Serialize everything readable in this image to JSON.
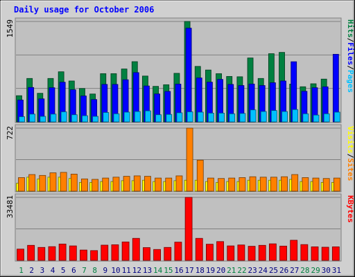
{
  "chart_data": {
    "type": "bar",
    "title": "Daily usage for October 2006",
    "x": [
      "1",
      "2",
      "3",
      "4",
      "5",
      "6",
      "7",
      "8",
      "9",
      "10",
      "11",
      "12",
      "13",
      "14",
      "15",
      "16",
      "17",
      "18",
      "19",
      "20",
      "21",
      "22",
      "23",
      "24",
      "25",
      "26",
      "27",
      "28",
      "29",
      "30",
      "31"
    ],
    "weekend_days": [
      "1",
      "7",
      "8",
      "14",
      "15",
      "21",
      "22",
      "28",
      "29"
    ],
    "colors": {
      "hits": "#008040",
      "files": "#0000ff",
      "pages": "#00c0ff",
      "visits": "#ffff00",
      "sites": "#ff8000",
      "kbytes": "#ff0000",
      "weekday_label": "#000080",
      "weekend_label": "#008040",
      "title": "#0000ff",
      "panel": "#c0c0c0",
      "frame": "#d0d0d0"
    },
    "panels": [
      {
        "id": "hits-files-pages",
        "ymax_label": "1549",
        "ymax": 1549,
        "side_labels": [
          {
            "text": "Hits",
            "key": "hits"
          },
          {
            "text": "/",
            "key": "sep"
          },
          {
            "text": "Files",
            "key": "files"
          },
          {
            "text": "/",
            "key": "sep"
          },
          {
            "text": "Pages",
            "key": "pages"
          }
        ],
        "series": [
          {
            "key": "hits",
            "values": [
              404,
              670,
              441,
              670,
              773,
              631,
              515,
              430,
              744,
              744,
              816,
              929,
              707,
              548,
              573,
              749,
              1549,
              856,
              800,
              744,
              701,
              696,
              986,
              670,
              1052,
              1072,
              583,
              542,
              588,
              660,
              0
            ]
          },
          {
            "key": "files",
            "values": [
              337,
              531,
              355,
              527,
              612,
              496,
              400,
              345,
              578,
              578,
              650,
              760,
              554,
              431,
              470,
              583,
              1446,
              678,
              613,
              655,
              578,
              561,
              584,
              561,
              604,
              631,
              928,
              472,
              527,
              541,
              1043
            ]
          },
          {
            "key": "pages",
            "values": [
              80,
              120,
              85,
              120,
              155,
              110,
              95,
              85,
              145,
              125,
              150,
              160,
              170,
              110,
              115,
              140,
              155,
              150,
              135,
              135,
              125,
              130,
              185,
              160,
              175,
              160,
              190,
              125,
              105,
              125,
              150
            ]
          }
        ]
      },
      {
        "id": "visits-sites",
        "ymax_label": "722",
        "ymax": 722,
        "side_labels": [
          {
            "text": "Visits",
            "key": "visits"
          },
          {
            "text": "/",
            "key": "sep"
          },
          {
            "text": "Sites",
            "key": "sites"
          }
        ],
        "series": [
          {
            "key": "visits",
            "values": [
              90,
              160,
              140,
              160,
              160,
              145,
              100,
              100,
              110,
              110,
              120,
              120,
              125,
              110,
              110,
              120,
              125,
              125,
              110,
              100,
              110,
              110,
              125,
              125,
              125,
              125,
              135,
              110,
              110,
              100,
              100
            ]
          },
          {
            "key": "sites",
            "values": [
              155,
              190,
              180,
              210,
              215,
              195,
              140,
              135,
              150,
              160,
              170,
              175,
              170,
              150,
              150,
              175,
              722,
              355,
              150,
              145,
              150,
              155,
              165,
              160,
              160,
              165,
              190,
              155,
              150,
              145,
              150
            ]
          }
        ]
      },
      {
        "id": "kbytes",
        "ymax_label": "33481",
        "ymax": 33481,
        "side_labels": [
          {
            "text": "KBytes",
            "key": "kbytes"
          }
        ],
        "series": [
          {
            "key": "kbytes",
            "values": [
              6000,
              8000,
              6900,
              7300,
              8700,
              7700,
              5500,
              5200,
              8100,
              8300,
              9800,
              11700,
              6800,
              5800,
              6900,
              9700,
              33481,
              11700,
              8600,
              10000,
              7700,
              8200,
              7500,
              8000,
              8800,
              7600,
              10700,
              8400,
              7200,
              7000,
              7200
            ]
          }
        ]
      }
    ]
  }
}
